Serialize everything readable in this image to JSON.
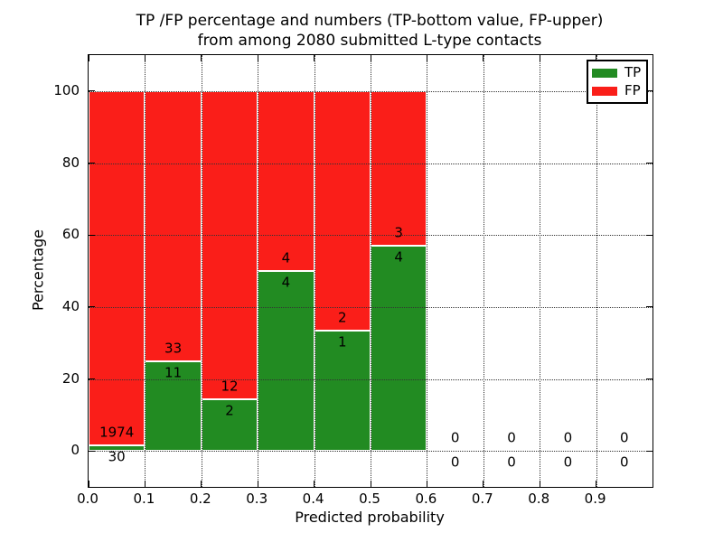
{
  "figure": {
    "title_line1": "TP /FP percentage and numbers (TP-bottom value, FP-upper)",
    "title_line2": "from among 2080 submitted L-type contacts"
  },
  "axes": {
    "xlabel": "Predicted probability",
    "ylabel": "Percentage",
    "ytick_labels": [
      "0",
      "20",
      "40",
      "60",
      "80",
      "100"
    ],
    "xtick_labels": [
      "0.0",
      "0.1",
      "0.2",
      "0.3",
      "0.4",
      "0.5",
      "0.6",
      "0.7",
      "0.8",
      "0.9"
    ]
  },
  "legend": {
    "items": [
      {
        "label": "TP",
        "color": "#228b22"
      },
      {
        "label": "FP",
        "color": "#fa1e19"
      }
    ]
  },
  "chart_data": {
    "type": "bar",
    "stacked": true,
    "title": "TP /FP percentage and numbers (TP-bottom value, FP-upper) from among 2080 submitted L-type contacts",
    "xlabel": "Predicted probability",
    "ylabel": "Percentage",
    "xlim": [
      0.0,
      1.0
    ],
    "ylim": [
      -10,
      110
    ],
    "yticks": [
      0,
      20,
      40,
      60,
      80,
      100
    ],
    "xticks": [
      0.0,
      0.1,
      0.2,
      0.3,
      0.4,
      0.5,
      0.6,
      0.7,
      0.8,
      0.9
    ],
    "grid": true,
    "legend_position": "upper right",
    "annotation_scheme": "FP count printed above the TP/FP boundary, TP count printed below it",
    "series": [
      {
        "name": "TP",
        "color": "#228b22",
        "role": "bottom",
        "counts": [
          30,
          11,
          2,
          4,
          1,
          4,
          0,
          0,
          0,
          0
        ]
      },
      {
        "name": "FP",
        "color": "#fa1e19",
        "role": "top",
        "counts": [
          1974,
          33,
          12,
          4,
          2,
          3,
          0,
          0,
          0,
          0
        ]
      }
    ],
    "bins": [
      {
        "range": [
          0.0,
          0.1
        ],
        "tp": 30,
        "fp": 1974,
        "tp_pct": 1.5,
        "fp_pct": 98.5
      },
      {
        "range": [
          0.1,
          0.2
        ],
        "tp": 11,
        "fp": 33,
        "tp_pct": 25.0,
        "fp_pct": 75.0
      },
      {
        "range": [
          0.2,
          0.3
        ],
        "tp": 2,
        "fp": 12,
        "tp_pct": 14.3,
        "fp_pct": 85.7
      },
      {
        "range": [
          0.3,
          0.4
        ],
        "tp": 4,
        "fp": 4,
        "tp_pct": 50.0,
        "fp_pct": 50.0
      },
      {
        "range": [
          0.4,
          0.5
        ],
        "tp": 1,
        "fp": 2,
        "tp_pct": 33.3,
        "fp_pct": 66.7
      },
      {
        "range": [
          0.5,
          0.6
        ],
        "tp": 4,
        "fp": 3,
        "tp_pct": 57.1,
        "fp_pct": 42.9
      },
      {
        "range": [
          0.6,
          0.7
        ],
        "tp": 0,
        "fp": 0,
        "tp_pct": 0,
        "fp_pct": 0
      },
      {
        "range": [
          0.7,
          0.8
        ],
        "tp": 0,
        "fp": 0,
        "tp_pct": 0,
        "fp_pct": 0
      },
      {
        "range": [
          0.8,
          0.9
        ],
        "tp": 0,
        "fp": 0,
        "tp_pct": 0,
        "fp_pct": 0
      },
      {
        "range": [
          0.9,
          1.0
        ],
        "tp": 0,
        "fp": 0,
        "tp_pct": 0,
        "fp_pct": 0
      }
    ]
  }
}
